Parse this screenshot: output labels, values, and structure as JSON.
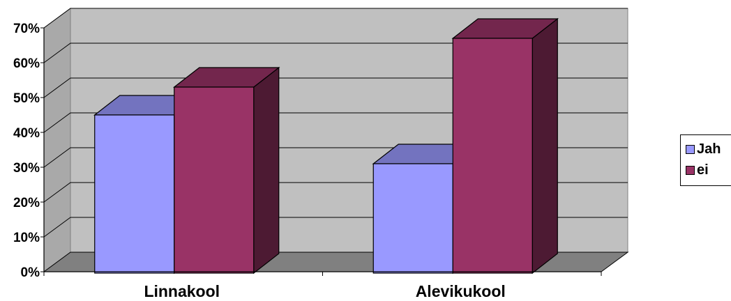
{
  "chart_data": {
    "type": "bar",
    "categories": [
      "Linnakool",
      "Alevikukool"
    ],
    "series": [
      {
        "name": "Jah",
        "values": [
          45,
          31
        ],
        "color": "#9999FF"
      },
      {
        "name": "ei",
        "values": [
          53,
          67
        ],
        "color": "#993366"
      }
    ],
    "yticks": [
      "0%",
      "10%",
      "20%",
      "30%",
      "40%",
      "50%",
      "60%",
      "70%"
    ],
    "ylim": [
      0,
      70
    ],
    "grid": true,
    "legend": "right",
    "title": "",
    "xlabel": "",
    "ylabel": ""
  }
}
